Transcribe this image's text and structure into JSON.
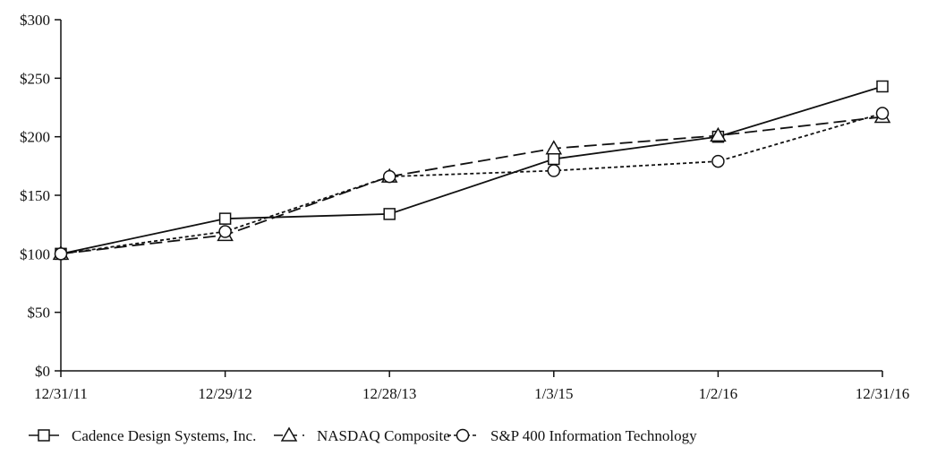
{
  "chart_data": {
    "type": "line",
    "title": "",
    "xlabel": "",
    "ylabel": "",
    "categories": [
      "12/31/11",
      "12/29/12",
      "12/28/13",
      "1/3/15",
      "1/2/16",
      "12/31/16"
    ],
    "y_ticks": [
      "$0",
      "$50",
      "$100",
      "$150",
      "$200",
      "$250",
      "$300"
    ],
    "ylim": [
      0,
      300
    ],
    "grid": false,
    "legend_position": "bottom",
    "series": [
      {
        "name": "Cadence Design Systems, Inc.",
        "values": [
          100,
          130,
          134,
          181,
          200,
          243
        ],
        "line_style": "solid",
        "marker": "square",
        "color": "#111111"
      },
      {
        "name": "NASDAQ Composite",
        "values": [
          100,
          116,
          166,
          190,
          201,
          217
        ],
        "line_style": "long-dash",
        "marker": "triangle",
        "color": "#111111"
      },
      {
        "name": "S&P 400 Information Technology",
        "values": [
          100,
          119,
          166,
          171,
          179,
          220
        ],
        "line_style": "short-dash",
        "marker": "circle",
        "color": "#111111"
      }
    ]
  }
}
